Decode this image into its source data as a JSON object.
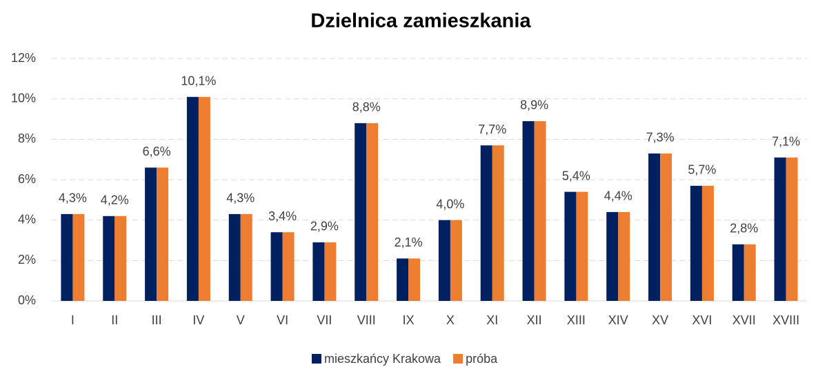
{
  "chart_data": {
    "type": "bar",
    "title": "Dzielnica zamieszkania",
    "categories": [
      "I",
      "II",
      "III",
      "IV",
      "V",
      "VI",
      "VII",
      "VIII",
      "IX",
      "X",
      "XI",
      "XII",
      "XIII",
      "XIV",
      "XV",
      "XVI",
      "XVII",
      "XVIII"
    ],
    "series": [
      {
        "name": "mieszkańcy Krakowa",
        "color": "#002060",
        "values": [
          4.3,
          4.2,
          6.6,
          10.1,
          4.3,
          3.4,
          2.9,
          8.8,
          2.1,
          4.0,
          7.7,
          8.9,
          5.4,
          4.4,
          7.3,
          5.7,
          2.8,
          7.1
        ],
        "value_labels": [
          "4,3%",
          "4,2%",
          "6,6%",
          "10,1%",
          "4,3%",
          "3,4%",
          "2,9%",
          "8,8%",
          "2,1%",
          "4,0%",
          "7,7%",
          "8,9%",
          "5,4%",
          "4,4%",
          "7,3%",
          "5,7%",
          "2,8%",
          "7,1%"
        ]
      },
      {
        "name": "próba",
        "color": "#ed7d31",
        "values": [
          4.3,
          4.2,
          6.6,
          10.1,
          4.3,
          3.4,
          2.9,
          8.8,
          2.1,
          4.0,
          7.7,
          8.9,
          5.4,
          4.4,
          7.3,
          5.7,
          2.8,
          7.1
        ]
      }
    ],
    "ylim": [
      0,
      12
    ],
    "yticks": [
      {
        "value": 0,
        "label": "0%"
      },
      {
        "value": 2,
        "label": "2%"
      },
      {
        "value": 4,
        "label": "4%"
      },
      {
        "value": 6,
        "label": "6%"
      },
      {
        "value": 8,
        "label": "8%"
      },
      {
        "value": 10,
        "label": "10%"
      },
      {
        "value": 12,
        "label": "12%"
      }
    ],
    "grid": true,
    "legend": "bottom"
  }
}
